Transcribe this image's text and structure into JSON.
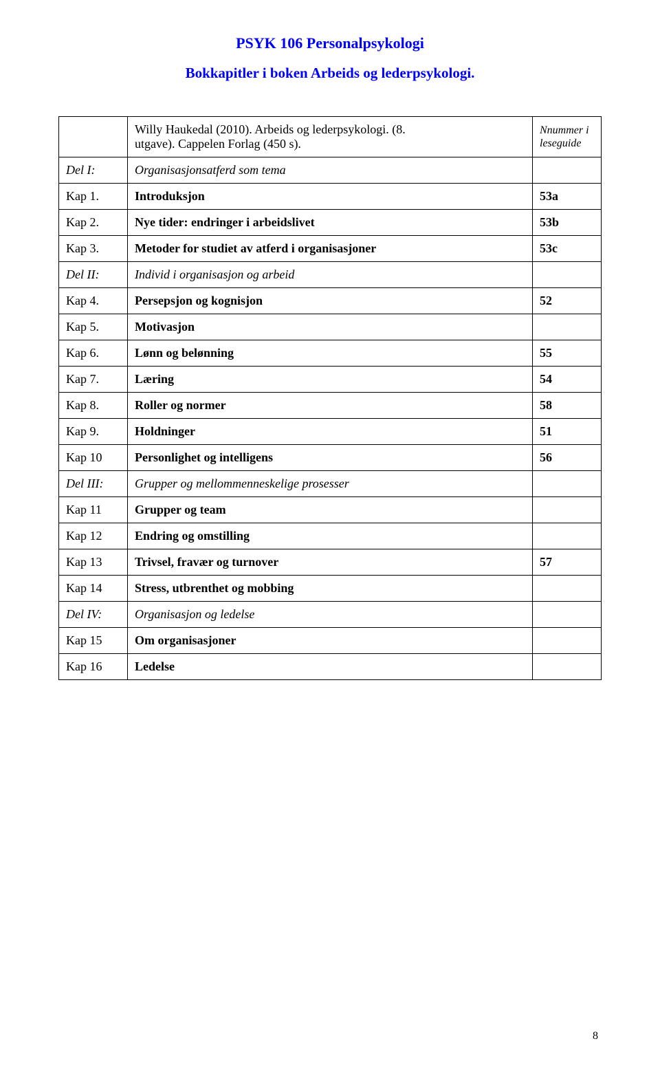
{
  "title": "PSYK 106 Personalpsykologi",
  "subtitle": "Bokkapitler i boken Arbeids og lederpsykologi.",
  "header_desc_line1": "Willy Haukedal (2010). Arbeids og lederpsykologi. (8.",
  "header_desc_line2": "utgave). Cappelen Forlag (450 s).",
  "header_note": "Nnummer i leseguide",
  "rows": [
    {
      "ref": "Del I:",
      "desc": "Organisasjonsatferd som tema",
      "num": "",
      "italic": true
    },
    {
      "ref": "Kap 1.",
      "desc": "Introduksjon",
      "num": "53a",
      "bold": true
    },
    {
      "ref": "Kap 2.",
      "desc": "Nye tider: endringer i arbeidslivet",
      "num": "53b",
      "bold": true
    },
    {
      "ref": "Kap 3.",
      "desc": "Metoder for studiet av atferd i organisasjoner",
      "num": "53c",
      "bold": true
    },
    {
      "ref": "Del II:",
      "desc": "Individ i organisasjon og arbeid",
      "num": "",
      "italic": true
    },
    {
      "ref": "Kap 4.",
      "desc": "Persepsjon og kognisjon",
      "num": "52",
      "bold": true
    },
    {
      "ref": "Kap 5.",
      "desc": "Motivasjon",
      "num": "",
      "bold": true
    },
    {
      "ref": "Kap 6.",
      "desc": "Lønn og belønning",
      "num": "55",
      "bold": true
    },
    {
      "ref": "Kap 7.",
      "desc": "Læring",
      "num": "54",
      "bold": true
    },
    {
      "ref": "Kap 8.",
      "desc": "Roller og normer",
      "num": "58",
      "bold": true
    },
    {
      "ref": "Kap 9.",
      "desc": "Holdninger",
      "num": "51",
      "bold": true
    },
    {
      "ref": "Kap 10",
      "desc": "Personlighet og intelligens",
      "num": "56",
      "bold": true
    },
    {
      "ref": "Del III:",
      "desc": "Grupper og mellommenneskelige prosesser",
      "num": "",
      "italic": true
    },
    {
      "ref": "Kap 11",
      "desc": "Grupper og team",
      "num": "",
      "bold": true
    },
    {
      "ref": "Kap 12",
      "desc": "Endring og omstilling",
      "num": "",
      "bold": true
    },
    {
      "ref": "Kap 13",
      "desc": "Trivsel, fravær og turnover",
      "num": "57",
      "bold": true
    },
    {
      "ref": "Kap 14",
      "desc": "Stress, utbrenthet og mobbing",
      "num": "",
      "bold": true
    },
    {
      "ref": "Del IV:",
      "desc": "Organisasjon og ledelse",
      "num": "",
      "italic": true
    },
    {
      "ref": "Kap 15",
      "desc": "Om organisasjoner",
      "num": "",
      "bold": true
    },
    {
      "ref": "Kap 16",
      "desc": "Ledelse",
      "num": "",
      "bold": true
    }
  ],
  "page_number": "8"
}
